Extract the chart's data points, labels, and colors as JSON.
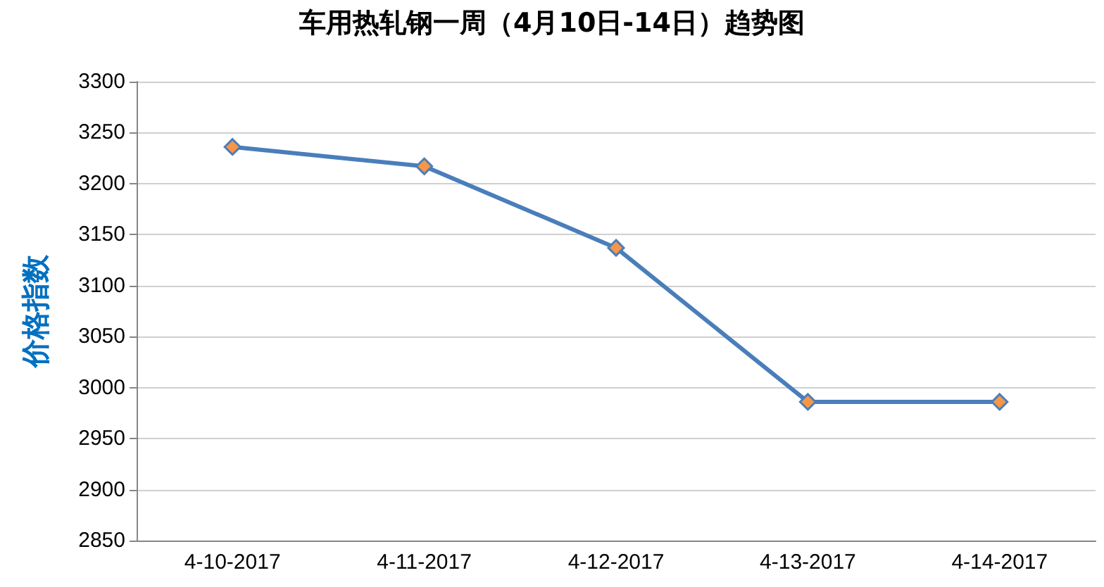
{
  "chart_data": {
    "type": "line",
    "title": "车用热轧钢一周（4月10日-14日）趋势图",
    "ylabel": "价格指数",
    "categories": [
      "4-10-2017",
      "4-11-2017",
      "4-12-2017",
      "4-13-2017",
      "4-14-2017"
    ],
    "series": [
      {
        "color": "#4a7ebb",
        "colors": [
          "#f79646",
          "#f79646",
          "#f79646",
          "#f79646",
          "#f79646"
        ],
        "values": [
          3236,
          3217,
          3137,
          2986,
          2986
        ]
      }
    ],
    "ylim": [
      2850,
      3300
    ],
    "yticks": [
      2850,
      2900,
      2950,
      3000,
      3050,
      3100,
      3150,
      3200,
      3250,
      3300
    ],
    "grid": "y",
    "marker": "diamond",
    "line_style": "solid"
  }
}
